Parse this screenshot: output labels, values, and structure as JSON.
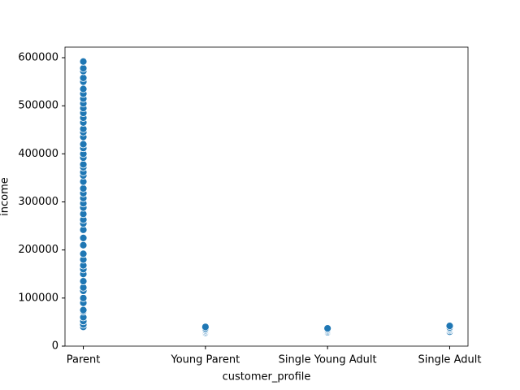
{
  "chart_data": {
    "type": "strip",
    "x_label": "customer_profile",
    "y_label": "income",
    "categories": [
      "Parent",
      "Young Parent",
      "Single Young Adult",
      "Single Adult"
    ],
    "values": [
      [
        40000,
        45000,
        52000,
        60000,
        72000,
        75000,
        90000,
        100000,
        115000,
        122000,
        135000,
        150000,
        160000,
        168000,
        180000,
        192000,
        210000,
        225000,
        242000,
        255000,
        263000,
        275000,
        288000,
        297000,
        308000,
        318000,
        328000,
        342000,
        355000,
        362000,
        372000,
        378000,
        392000,
        400000,
        412000,
        420000,
        435000,
        445000,
        452000,
        465000,
        475000,
        485000,
        495000,
        505000,
        515000,
        525000,
        535000,
        550000,
        558000,
        572000,
        578000,
        592000
      ],
      [
        28000,
        30000,
        32000,
        33000,
        35000,
        37000,
        40000
      ],
      [
        29000,
        31000,
        33000,
        35000,
        37000
      ],
      [
        30000,
        33000,
        35000,
        37000,
        39000,
        42000
      ]
    ],
    "color": "#1f77b4",
    "ylim": [
      0,
      622000
    ],
    "yticks": [
      0,
      100000,
      200000,
      300000,
      400000,
      500000,
      600000
    ]
  }
}
